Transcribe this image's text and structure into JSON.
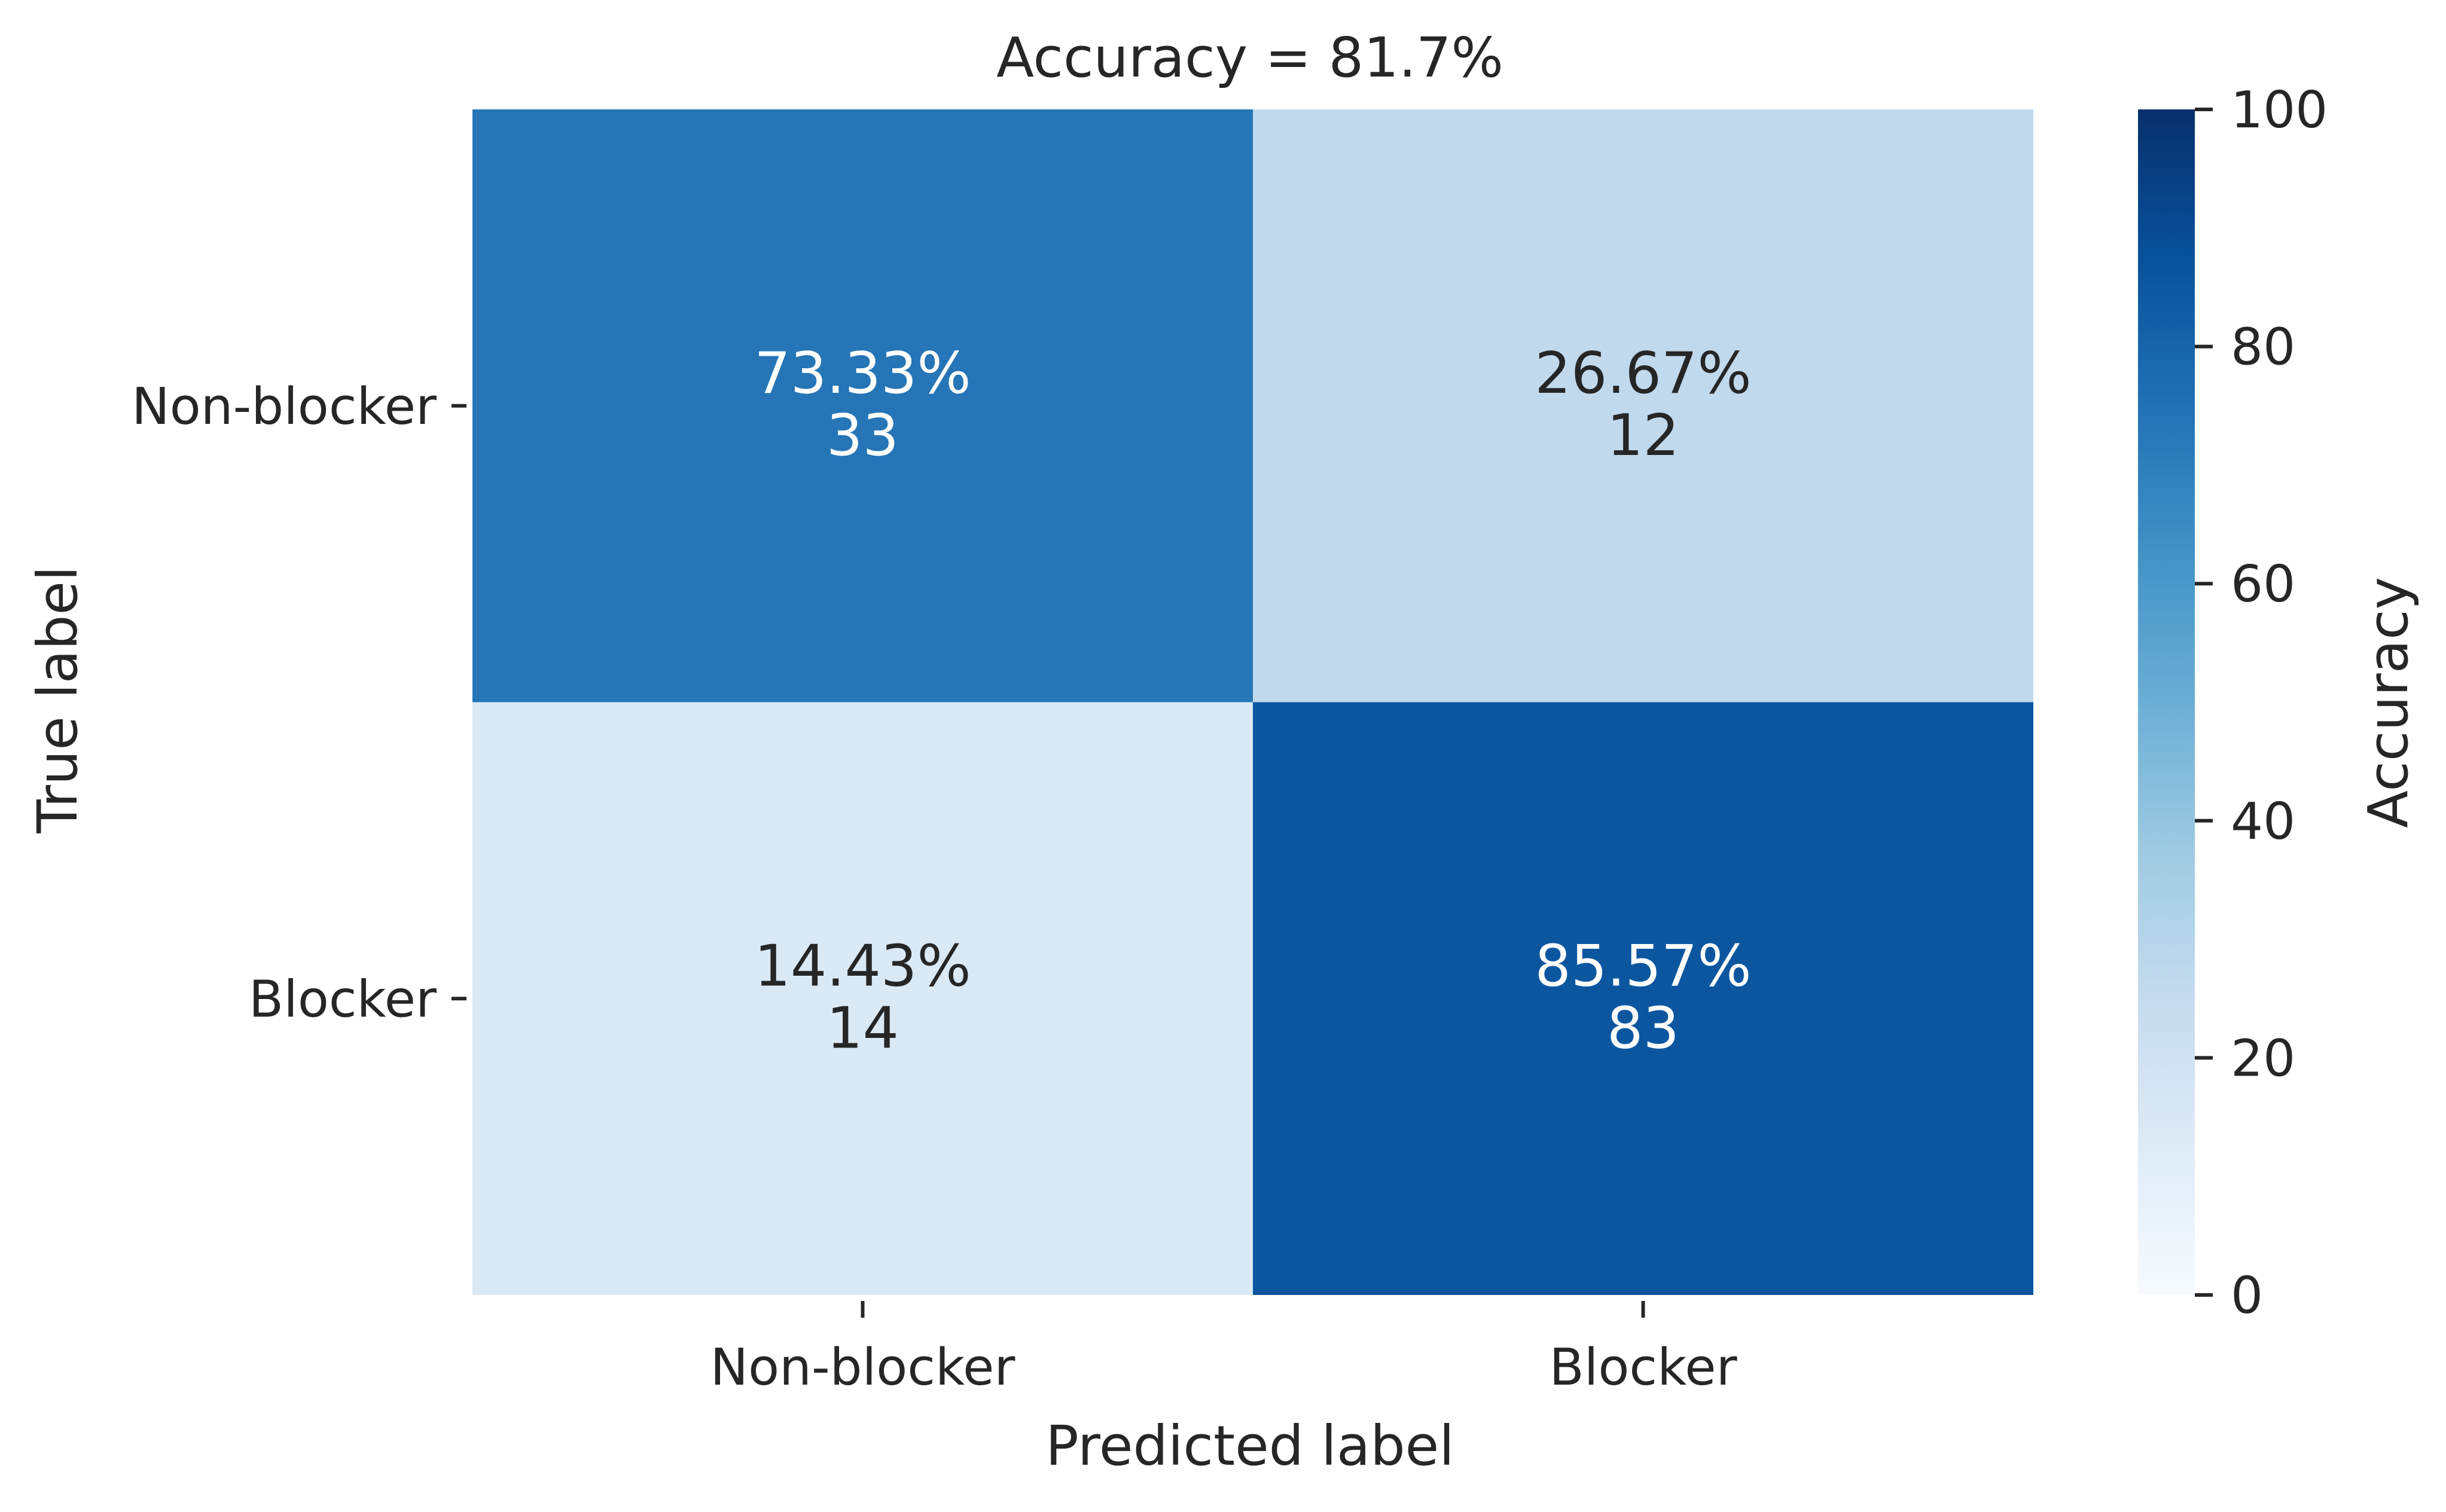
{
  "chart_data": {
    "type": "heatmap",
    "title": "Accuracy = 81.7%",
    "xlabel": "Predicted label",
    "ylabel": "True label",
    "x_categories": [
      "Non-blocker",
      "Blocker"
    ],
    "y_categories": [
      "Non-blocker",
      "Blocker"
    ],
    "values": [
      [
        73.33,
        26.67
      ],
      [
        14.43,
        85.57
      ]
    ],
    "value_labels": [
      [
        "73.33%",
        "26.67%"
      ],
      [
        "14.43%",
        "85.57%"
      ]
    ],
    "counts": [
      [
        "33",
        "12"
      ],
      [
        "14",
        "83"
      ]
    ],
    "colorbar": {
      "label": "Accuracy",
      "range": [
        0,
        100
      ],
      "ticks": [
        "0",
        "20",
        "40",
        "60",
        "80",
        "100"
      ],
      "colormap": "Blues"
    },
    "grid": false
  }
}
